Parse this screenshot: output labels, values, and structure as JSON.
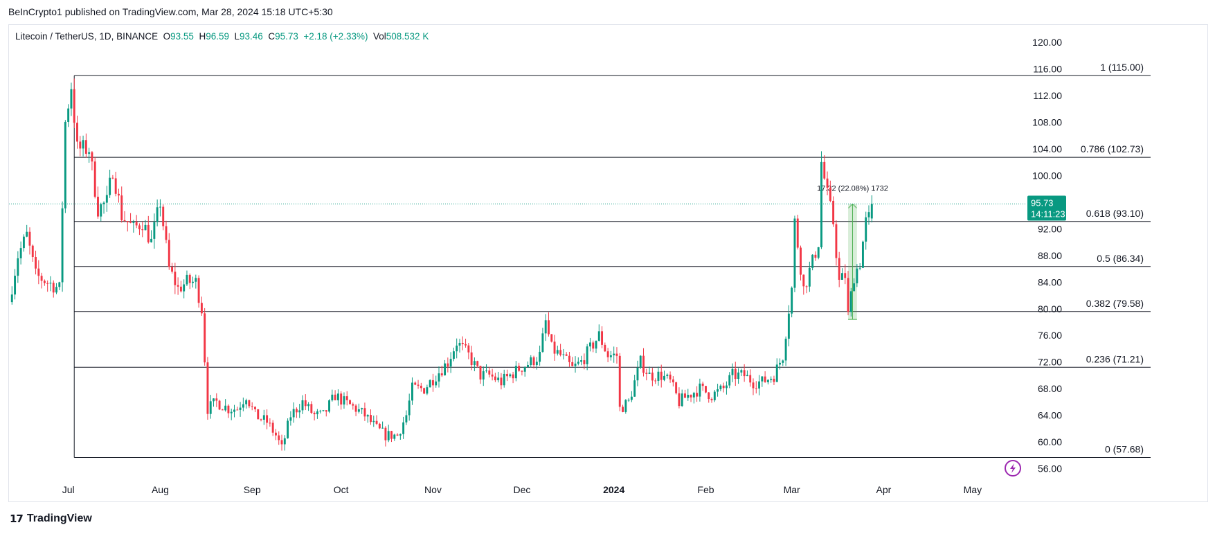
{
  "header": {
    "published": "BeInCrypto1 published on TradingView.com, Mar 28, 2024 15:18 UTC+5:30"
  },
  "legend": {
    "symbol": "Litecoin / TetherUS, 1D, BINANCE",
    "o_label": "O",
    "o": "93.55",
    "h_label": "H",
    "h": "96.59",
    "l_label": "L",
    "l": "93.46",
    "c_label": "C",
    "c": "95.73",
    "change": "+2.18 (+2.33%)",
    "vol_label": "Vol",
    "vol": "508.532 K"
  },
  "footer": {
    "brand": "TradingView"
  },
  "colors": {
    "up": "#089981",
    "down": "#f23645",
    "measure": "#4caf50",
    "lightning": "#9c27b0"
  },
  "chart_data": {
    "type": "candlestick",
    "title": "Litecoin / TetherUS, 1D, BINANCE",
    "y_ticks": [
      "56.00",
      "60.00",
      "64.00",
      "68.00",
      "72.00",
      "76.00",
      "80.00",
      "84.00",
      "88.00",
      "92.00",
      "96.00",
      "100.00",
      "104.00",
      "108.00",
      "112.00",
      "116.00",
      "120.00"
    ],
    "ylim": [
      54.4,
      122.6
    ],
    "x_ticks": [
      {
        "label": "Jul",
        "date": "2023-07-01"
      },
      {
        "label": "Aug",
        "date": "2023-08-01"
      },
      {
        "label": "Sep",
        "date": "2023-09-01"
      },
      {
        "label": "Oct",
        "date": "2023-10-01"
      },
      {
        "label": "Nov",
        "date": "2023-11-01"
      },
      {
        "label": "Dec",
        "date": "2023-12-01"
      },
      {
        "label": "2024",
        "date": "2024-01-01",
        "bold": true
      },
      {
        "label": "Feb",
        "date": "2024-02-01"
      },
      {
        "label": "Mar",
        "date": "2024-03-01"
      },
      {
        "label": "Apr",
        "date": "2024-04-01"
      },
      {
        "label": "May",
        "date": "2024-05-01"
      }
    ],
    "xlim": [
      "2023-06-11",
      "2024-05-19"
    ],
    "last_price": "95.73",
    "countdown": "14:11:23",
    "last_value": 95.73,
    "fib_levels": [
      {
        "label": "1 (115.00)",
        "value": 115.0
      },
      {
        "label": "0.786 (102.73)",
        "value": 102.73
      },
      {
        "label": "0.618 (93.10)",
        "value": 93.1
      },
      {
        "label": "0.5 (86.34)",
        "value": 86.34
      },
      {
        "label": "0.382 (79.58)",
        "value": 79.58
      },
      {
        "label": "0.236 (71.21)",
        "value": 71.21
      },
      {
        "label": "0 (57.68)",
        "value": 57.68
      }
    ],
    "fib_start": "2023-07-03",
    "measure": {
      "label": "17.32 (22.08%) 1732",
      "from": 78.4,
      "to": 95.73,
      "start": "2024-03-20",
      "end": "2024-03-23"
    },
    "path": [
      [
        "2023-06-11",
        81
      ],
      [
        "2023-06-14",
        88
      ],
      [
        "2023-06-17",
        91
      ],
      [
        "2023-06-20",
        85
      ],
      [
        "2023-06-24",
        84
      ],
      [
        "2023-06-28",
        83
      ],
      [
        "2023-06-30",
        108
      ],
      [
        "2023-07-02",
        113.5
      ],
      [
        "2023-07-04",
        104
      ],
      [
        "2023-07-08",
        104
      ],
      [
        "2023-07-11",
        95
      ],
      [
        "2023-07-14",
        96
      ],
      [
        "2023-07-16",
        101
      ],
      [
        "2023-07-19",
        94
      ],
      [
        "2023-07-23",
        92
      ],
      [
        "2023-07-26",
        93
      ],
      [
        "2023-07-29",
        90
      ],
      [
        "2023-08-01",
        96
      ],
      [
        "2023-08-04",
        86
      ],
      [
        "2023-08-07",
        83
      ],
      [
        "2023-08-10",
        84
      ],
      [
        "2023-08-13",
        84
      ],
      [
        "2023-08-15",
        80
      ],
      [
        "2023-08-17",
        65
      ],
      [
        "2023-08-20",
        66
      ],
      [
        "2023-08-24",
        65
      ],
      [
        "2023-08-27",
        65
      ],
      [
        "2023-08-30",
        67
      ],
      [
        "2023-09-02",
        64
      ],
      [
        "2023-09-06",
        63
      ],
      [
        "2023-09-09",
        61
      ],
      [
        "2023-09-11",
        59
      ],
      [
        "2023-09-14",
        64
      ],
      [
        "2023-09-18",
        66
      ],
      [
        "2023-09-22",
        64
      ],
      [
        "2023-09-25",
        64
      ],
      [
        "2023-09-29",
        67
      ],
      [
        "2023-10-02",
        66
      ],
      [
        "2023-10-06",
        65
      ],
      [
        "2023-10-09",
        64
      ],
      [
        "2023-10-13",
        62
      ],
      [
        "2023-10-16",
        61
      ],
      [
        "2023-10-20",
        61
      ],
      [
        "2023-10-23",
        64
      ],
      [
        "2023-10-25",
        68
      ],
      [
        "2023-10-29",
        68
      ],
      [
        "2023-11-02",
        70
      ],
      [
        "2023-11-06",
        72
      ],
      [
        "2023-11-09",
        75
      ],
      [
        "2023-11-13",
        73
      ],
      [
        "2023-11-17",
        70
      ],
      [
        "2023-11-20",
        70
      ],
      [
        "2023-11-24",
        69
      ],
      [
        "2023-11-27",
        70
      ],
      [
        "2023-11-30",
        71
      ],
      [
        "2023-12-04",
        72
      ],
      [
        "2023-12-07",
        73
      ],
      [
        "2023-12-09",
        78
      ],
      [
        "2023-12-11",
        74
      ],
      [
        "2023-12-14",
        73
      ],
      [
        "2023-12-18",
        71
      ],
      [
        "2023-12-21",
        72
      ],
      [
        "2023-12-24",
        74
      ],
      [
        "2023-12-27",
        76
      ],
      [
        "2023-12-30",
        73
      ],
      [
        "2024-01-02",
        73
      ],
      [
        "2024-01-03",
        65
      ],
      [
        "2024-01-06",
        66
      ],
      [
        "2024-01-10",
        72
      ],
      [
        "2024-01-13",
        70
      ],
      [
        "2024-01-17",
        70
      ],
      [
        "2024-01-20",
        69
      ],
      [
        "2024-01-23",
        66
      ],
      [
        "2024-01-26",
        67
      ],
      [
        "2024-01-30",
        68
      ],
      [
        "2024-02-03",
        67
      ],
      [
        "2024-02-07",
        68
      ],
      [
        "2024-02-10",
        70
      ],
      [
        "2024-02-14",
        70
      ],
      [
        "2024-02-17",
        69
      ],
      [
        "2024-02-20",
        69
      ],
      [
        "2024-02-24",
        70
      ],
      [
        "2024-02-27",
        73
      ],
      [
        "2024-02-29",
        80
      ],
      [
        "2024-03-01",
        83
      ],
      [
        "2024-03-02",
        93
      ],
      [
        "2024-03-05",
        83
      ],
      [
        "2024-03-08",
        87
      ],
      [
        "2024-03-10",
        90
      ],
      [
        "2024-03-11",
        102
      ],
      [
        "2024-03-13",
        97
      ],
      [
        "2024-03-15",
        93
      ],
      [
        "2024-03-17",
        84
      ],
      [
        "2024-03-19",
        85
      ],
      [
        "2024-03-20",
        79
      ],
      [
        "2024-03-22",
        85
      ],
      [
        "2024-03-24",
        87
      ],
      [
        "2024-03-26",
        93
      ],
      [
        "2024-03-27",
        93.55
      ],
      [
        "2024-03-28",
        95.73
      ]
    ]
  }
}
